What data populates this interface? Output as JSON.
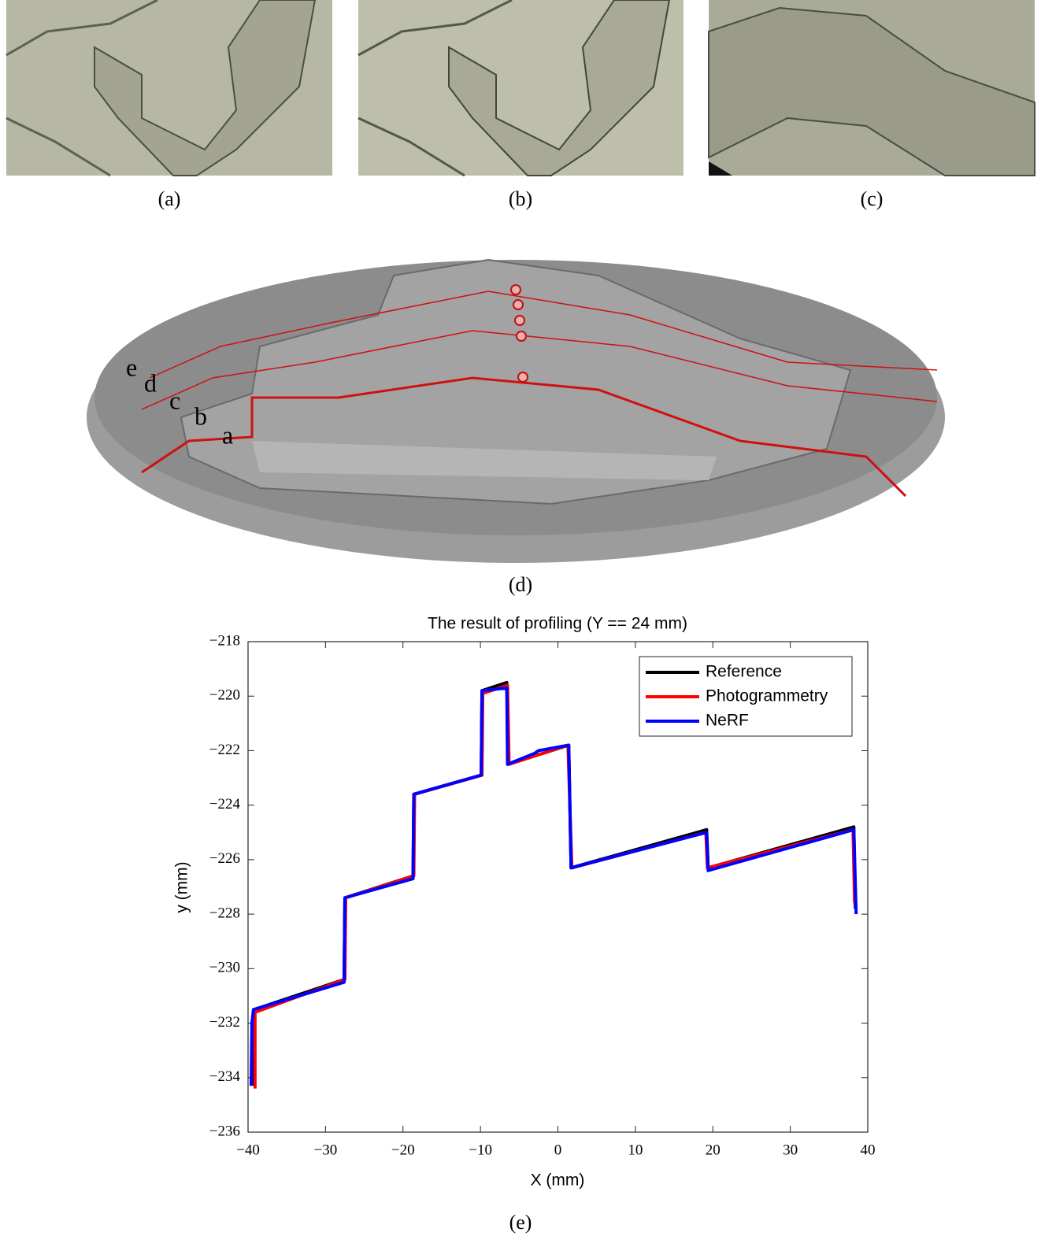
{
  "panel_labels": [
    "(a)",
    "(b)",
    "(c)",
    "(d)",
    "(e)"
  ],
  "figure_d_labels": [
    "e",
    "d",
    "c",
    "b",
    "a"
  ],
  "chart_data": {
    "type": "line",
    "title": "The result of profiling (Y == 24 mm)",
    "x_label": "X (mm)",
    "y_label": "y (mm)",
    "xlim": [
      -40,
      40
    ],
    "xticks": [
      {
        "value": -40,
        "label": "−40"
      },
      {
        "value": -30,
        "label": "−30"
      },
      {
        "value": -20,
        "label": "−20"
      },
      {
        "value": -10,
        "label": "−10"
      },
      0,
      10,
      20,
      30,
      40
    ],
    "ylim": [
      -236,
      -218
    ],
    "yticks": [
      {
        "value": -236,
        "label": "−236"
      },
      {
        "value": -234,
        "label": "−234"
      },
      {
        "value": -232,
        "label": "−232"
      },
      {
        "value": -230,
        "label": "−230"
      },
      {
        "value": -228,
        "label": "−228"
      },
      {
        "value": -226,
        "label": "−226"
      },
      {
        "value": -224,
        "label": "−224"
      },
      {
        "value": -222,
        "label": "−222"
      },
      {
        "value": -220,
        "label": "−220"
      },
      {
        "value": -218,
        "label": "−218"
      }
    ],
    "legend": "upper right",
    "series": [
      {
        "name": "Reference",
        "color": "#000000",
        "x": [
          -39.2,
          -39.2,
          -27.6,
          -27.5,
          -18.7,
          -18.6,
          -9.9,
          -9.8,
          -6.6,
          -6.4,
          1.4,
          1.7,
          19.2,
          19.4,
          38.2,
          38.4
        ],
        "values": [
          -234.3,
          -231.5,
          -230.4,
          -227.4,
          -226.6,
          -223.6,
          -222.9,
          -219.8,
          -219.5,
          -222.5,
          -221.8,
          -226.3,
          -224.9,
          -226.3,
          -224.8,
          -227.8
        ]
      },
      {
        "name": "Photogrammetry",
        "color": "#ff0000",
        "x": [
          -39.1,
          -39.1,
          -27.5,
          -27.4,
          -18.6,
          -18.5,
          -9.8,
          -9.7,
          -6.5,
          -6.3,
          1.3,
          1.8,
          19.1,
          19.3,
          38.1,
          38.3
        ],
        "values": [
          -234.4,
          -231.6,
          -230.4,
          -227.4,
          -226.6,
          -223.6,
          -222.9,
          -219.9,
          -219.6,
          -222.5,
          -221.8,
          -226.3,
          -225.0,
          -226.3,
          -224.9,
          -227.6
        ]
      },
      {
        "name": "NeRF",
        "color": "#0000ff",
        "x": [
          -39.6,
          -39.5,
          -39.3,
          -27.6,
          -27.5,
          -18.7,
          -18.6,
          -9.9,
          -9.8,
          -6.6,
          -6.5,
          -3,
          -2.5,
          1.4,
          1.7,
          19.2,
          19.4,
          38.2,
          38.5
        ],
        "values": [
          -234.3,
          -232.0,
          -231.5,
          -230.5,
          -227.4,
          -226.7,
          -223.6,
          -222.9,
          -219.8,
          -219.7,
          -222.5,
          -222.1,
          -222.0,
          -221.8,
          -226.3,
          -225.0,
          -226.4,
          -224.9,
          -228.0
        ]
      }
    ]
  }
}
